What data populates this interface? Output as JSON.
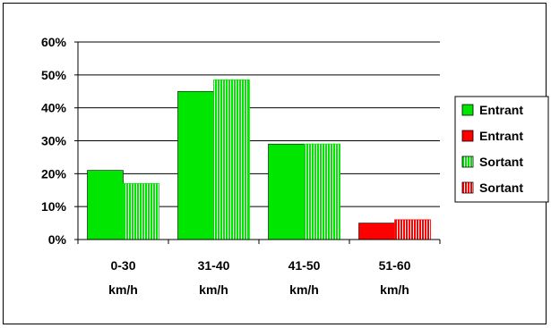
{
  "chart_data": {
    "type": "bar",
    "categories": [
      [
        "0-30",
        "km/h"
      ],
      [
        "31-40",
        "km/h"
      ],
      [
        "41-50",
        "km/h"
      ],
      [
        "51-60",
        "km/h"
      ]
    ],
    "ylim": [
      0,
      60
    ],
    "yticks": [
      "0%",
      "10%",
      "20%",
      "30%",
      "40%",
      "50%",
      "60%"
    ],
    "grid": true,
    "legend_position": "right",
    "series": [
      {
        "name": "Entrant",
        "values": [
          21,
          45,
          29,
          null
        ],
        "color": "#00e600",
        "pattern": "solid"
      },
      {
        "name": "Entrant",
        "values": [
          null,
          null,
          null,
          5
        ],
        "color": "#ff0000",
        "pattern": "solid"
      },
      {
        "name": "Sortant",
        "values": [
          17,
          48.5,
          29,
          null
        ],
        "color": "#00e600",
        "pattern": "striped"
      },
      {
        "name": "Sortant",
        "values": [
          null,
          null,
          null,
          6
        ],
        "color": "#ff0000",
        "pattern": "striped"
      }
    ]
  }
}
